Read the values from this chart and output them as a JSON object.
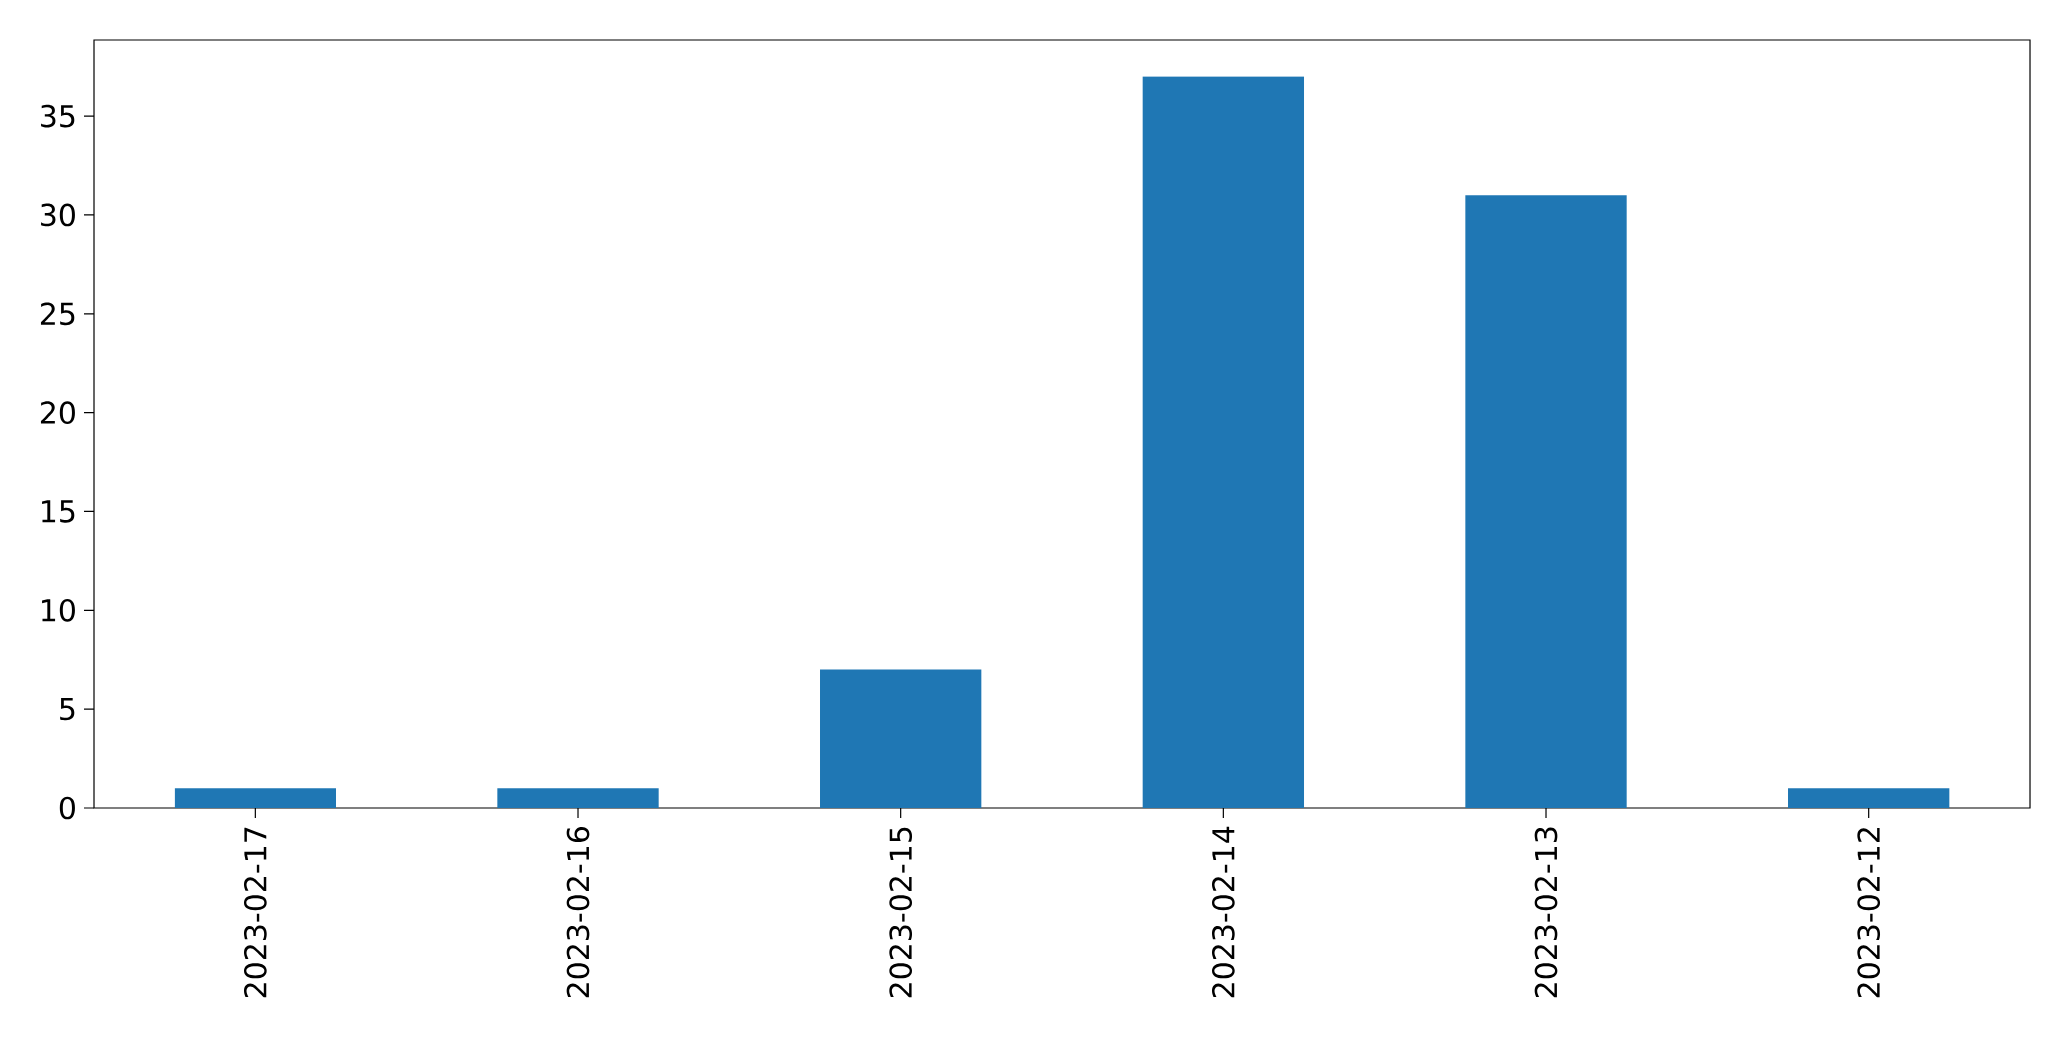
{
  "chart_data": {
    "type": "bar",
    "categories": [
      "2023-02-17",
      "2023-02-16",
      "2023-02-15",
      "2023-02-14",
      "2023-02-13",
      "2023-02-12"
    ],
    "values": [
      1,
      1,
      7,
      37,
      31,
      1
    ],
    "color": "#1f77b4",
    "ylim": [
      0,
      38.85
    ],
    "yticks": [
      0,
      5,
      10,
      15,
      20,
      25,
      30,
      35
    ]
  }
}
